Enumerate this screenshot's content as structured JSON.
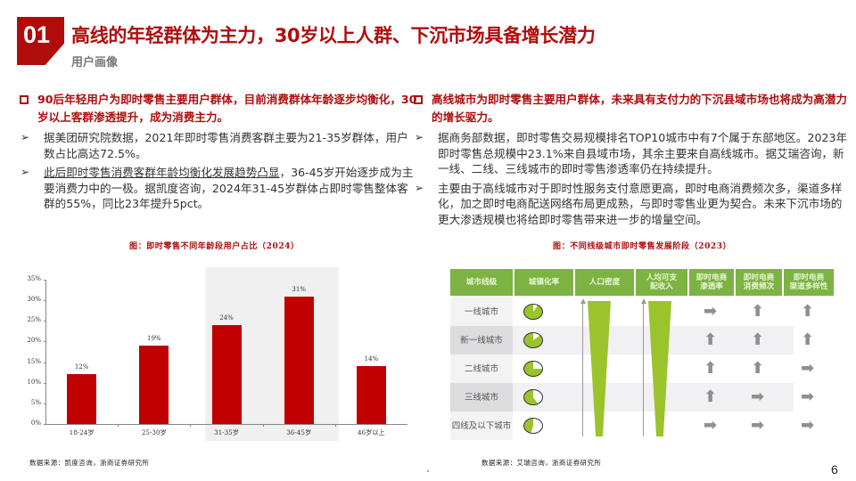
{
  "header": {
    "section_number": "01",
    "title": "高线的年轻群体为主力，30岁以上人群、下沉市场具备增长潜力",
    "subtitle": "用户画像"
  },
  "left_column": {
    "heading": "90后年轻用户为即时零售主要用户群体，目前消费群体年龄逐步均衡化，30岁以上客群渗透提升，成为消费主力。",
    "bullets": [
      {
        "text": "据美团研究院数据，2021年即时零售消费客群主要为21-35岁群体，用户数占比高达72.5%。"
      },
      {
        "underlined": "此后即时零售消费客群年龄均衡化发展趋势凸显",
        "text": "，36-45岁开始逐步成为主要消费力中的一极。据凯度咨询，2024年31-45岁群体占即时零售整体客群的55%，同比23年提升5pct。"
      }
    ]
  },
  "right_column": {
    "heading": "高线城市为即时零售主要用户群体，未来具有支付力的下沉县域市场也将成为高潜力的增长驱力。",
    "bullets": [
      {
        "text": "据商务部数据，即时零售交易规模排名TOP10城市中有7个属于东部地区。2023年即时零售总规模中23.1%来自县域市场，其余主要来自高线城市。据艾瑞咨询，新一线、二线、三线城市的即时零售渗透率仍在持续提升。"
      },
      {
        "text": "主要由于高线城市对于即时性服务支付意愿更高，即时电商消费频次多，渠道多样化，加之即时电商配送网络布局更成熟，与即时零售业更为契合。未来下沉市场的更大渗透规模也将给即时零售带来进一步的增量空间。"
      }
    ]
  },
  "left_figure": {
    "caption": "图：即时零售不同年龄段用户占比（2024）",
    "source": "数据来源：凯度咨询，浙商证券研究所"
  },
  "right_figure": {
    "caption": "图：不同线级城市即时零售发展阶段（2023）",
    "source": "数据来源：艾瑞咨询，浙商证券研究所",
    "columns": [
      "城市线级",
      "城镇化率",
      "人口密度",
      "人均可支配收入",
      "即时电商渗透率",
      "即时电商消费频次",
      "即时电商渠道多样性"
    ],
    "column_display": [
      "城市线级",
      "城镇化率",
      "人口密度",
      "人均可支\n配收入",
      "即时电商\n渗透率",
      "即时电商\n消费频次",
      "即时电商\n渠道多样性"
    ],
    "rows": [
      {
        "city": "一线城市",
        "urbanization_fill": 0.9,
        "penetration": "right",
        "frequency": "up",
        "diversity": "up"
      },
      {
        "city": "新一线城市",
        "urbanization_fill": 0.85,
        "penetration": "up",
        "frequency": "up",
        "diversity": "up"
      },
      {
        "city": "二线城市",
        "urbanization_fill": 0.75,
        "penetration": "up",
        "frequency": "up",
        "diversity": "right"
      },
      {
        "city": "三线城市",
        "urbanization_fill": 0.6,
        "penetration": "up",
        "frequency": "right",
        "diversity": "right"
      },
      {
        "city": "四线及以下城市",
        "urbanization_fill": 0.45,
        "penetration": "right",
        "frequency": "right",
        "diversity": "right"
      }
    ],
    "trend_icons": {
      "up": "↑ up-arrow-icon",
      "right": "→ right-arrow-icon"
    },
    "colors": {
      "header_green": "#7cb342",
      "wedge_green": "#9bc32b",
      "arrow_gray": "#8f8f8f"
    }
  },
  "chart_data": {
    "type": "bar",
    "title": "图：即时零售不同年龄段用户占比（2024）",
    "categories": [
      "18-24岁",
      "25-30岁",
      "31-35岁",
      "36-45岁",
      "46岁以上"
    ],
    "values": [
      12,
      19,
      24,
      31,
      14
    ],
    "value_labels": [
      "12%",
      "19%",
      "24%",
      "31%",
      "14%"
    ],
    "xlabel": "",
    "ylabel": "",
    "ylim": [
      0,
      35
    ],
    "yticks": [
      "0%",
      "5%",
      "10%",
      "15%",
      "20%",
      "25%",
      "30%",
      "35%"
    ],
    "grid": false,
    "highlight_categories": [
      "31-35岁",
      "36-45岁"
    ],
    "bar_color": "#c00000",
    "highlight_bg": "#f0f0f0"
  },
  "footer": {
    "page_number": "6"
  },
  "colors": {
    "brand_red": "#b10c0c",
    "subtitle_gray": "#777777"
  }
}
